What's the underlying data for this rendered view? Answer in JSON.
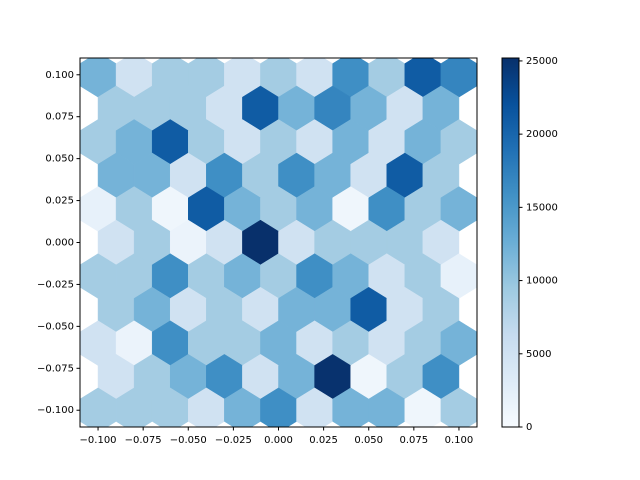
{
  "chart_data": {
    "type": "hexbin",
    "xlim": [
      -0.11,
      0.11
    ],
    "ylim": [
      -0.11,
      0.11
    ],
    "xticks": [
      {
        "value": -0.1,
        "label": "−0.100"
      },
      {
        "value": -0.075,
        "label": "−0.075"
      },
      {
        "value": -0.05,
        "label": "−0.050"
      },
      {
        "value": -0.025,
        "label": "−0.025"
      },
      {
        "value": 0,
        "label": "0.000"
      },
      {
        "value": 0.025,
        "label": "0.025"
      },
      {
        "value": 0.05,
        "label": "0.050"
      },
      {
        "value": 0.075,
        "label": "0.075"
      },
      {
        "value": 0.1,
        "label": "0.100"
      }
    ],
    "yticks": [
      {
        "value": -0.1,
        "label": "−0.100"
      },
      {
        "value": -0.075,
        "label": "−0.075"
      },
      {
        "value": -0.05,
        "label": "−0.050"
      },
      {
        "value": -0.025,
        "label": "−0.025"
      },
      {
        "value": 0,
        "label": "0.000"
      },
      {
        "value": 0.025,
        "label": "0.025"
      },
      {
        "value": 0.05,
        "label": "0.050"
      },
      {
        "value": 0.075,
        "label": "0.075"
      },
      {
        "value": 0.1,
        "label": "0.100"
      }
    ],
    "colormap": "Blues",
    "clim": [
      0,
      25200
    ],
    "cticks": [
      0,
      5000,
      10000,
      15000,
      20000,
      25000
    ],
    "x": [
      -0.1,
      -0.08,
      -0.06,
      -0.04,
      -0.02,
      0,
      0.02,
      0.04,
      0.06,
      0.08,
      0.1,
      -0.09,
      -0.07,
      -0.05,
      -0.03,
      -0.01,
      0.01,
      0.03,
      0.05,
      0.07,
      0.09,
      -0.1,
      -0.08,
      -0.06,
      -0.04,
      -0.02,
      0,
      0.02,
      0.04,
      0.06,
      0.08,
      0.1,
      -0.09,
      -0.07,
      -0.05,
      -0.03,
      -0.01,
      0.01,
      0.03,
      0.05,
      0.07,
      0.09,
      -0.1,
      -0.08,
      -0.06,
      -0.04,
      -0.02,
      0,
      0.02,
      0.04,
      0.06,
      0.08,
      0.1,
      -0.09,
      -0.07,
      -0.05,
      -0.03,
      -0.01,
      0.01,
      0.03,
      0.05,
      0.07,
      0.09,
      -0.1,
      -0.08,
      -0.06,
      -0.04,
      -0.02,
      0,
      0.02,
      0.04,
      0.06,
      0.08,
      0.1,
      -0.09,
      -0.07,
      -0.05,
      -0.03,
      -0.01,
      0.01,
      0.03,
      0.05,
      0.07,
      0.09,
      -0.1,
      -0.08,
      -0.06,
      -0.04,
      -0.02,
      0,
      0.02,
      0.04,
      0.06,
      0.08,
      0.1,
      -0.09,
      -0.07,
      -0.05,
      -0.03,
      -0.01,
      0.01,
      0.03,
      0.05,
      0.07,
      0.09,
      -0.1,
      -0.08,
      -0.06,
      -0.04,
      -0.02,
      0,
      0.02,
      0.04,
      0.06,
      0.08,
      0.1
    ],
    "y": [
      0.1,
      0.1,
      0.1,
      0.1,
      0.1,
      0.1,
      0.1,
      0.1,
      0.1,
      0.1,
      0.1,
      0.08,
      0.08,
      0.08,
      0.08,
      0.08,
      0.08,
      0.08,
      0.08,
      0.08,
      0.08,
      0.06,
      0.06,
      0.06,
      0.06,
      0.06,
      0.06,
      0.06,
      0.06,
      0.06,
      0.06,
      0.06,
      0.04,
      0.04,
      0.04,
      0.04,
      0.04,
      0.04,
      0.04,
      0.04,
      0.04,
      0.04,
      0.02,
      0.02,
      0.02,
      0.02,
      0.02,
      0.02,
      0.02,
      0.02,
      0.02,
      0.02,
      0.02,
      0,
      0,
      0,
      0,
      0,
      0,
      0,
      0,
      0,
      0,
      -0.02,
      -0.02,
      -0.02,
      -0.02,
      -0.02,
      -0.02,
      -0.02,
      -0.02,
      -0.02,
      -0.02,
      -0.02,
      -0.04,
      -0.04,
      -0.04,
      -0.04,
      -0.04,
      -0.04,
      -0.04,
      -0.04,
      -0.04,
      -0.04,
      -0.06,
      -0.06,
      -0.06,
      -0.06,
      -0.06,
      -0.06,
      -0.06,
      -0.06,
      -0.06,
      -0.06,
      -0.06,
      -0.08,
      -0.08,
      -0.08,
      -0.08,
      -0.08,
      -0.08,
      -0.08,
      -0.08,
      -0.08,
      -0.08,
      -0.1,
      -0.1,
      -0.1,
      -0.1,
      -0.1,
      -0.1,
      -0.1,
      -0.1,
      -0.1,
      -0.1,
      -0.1
    ],
    "values": [
      12000,
      5000,
      9000,
      9000,
      5000,
      9000,
      5000,
      16000,
      9000,
      21000,
      17000,
      9000,
      9000,
      9000,
      5000,
      21000,
      12000,
      17000,
      12000,
      5000,
      12000,
      9000,
      12000,
      21000,
      9000,
      5000,
      9000,
      5000,
      12000,
      5000,
      12000,
      9000,
      12000,
      12000,
      5000,
      16000,
      9000,
      16000,
      12000,
      5000,
      21000,
      9000,
      2000,
      9000,
      1000,
      21000,
      12000,
      9000,
      12000,
      1000,
      16000,
      9000,
      12000,
      5000,
      9000,
      1500,
      5000,
      25200,
      5000,
      9000,
      9000,
      9000,
      5000,
      9000,
      9000,
      16000,
      9000,
      12000,
      9000,
      16000,
      12000,
      5000,
      9000,
      2000,
      9000,
      12000,
      5000,
      9000,
      5000,
      12000,
      12000,
      21000,
      5000,
      9000,
      5000,
      1500,
      16000,
      9000,
      9000,
      12000,
      5000,
      9000,
      5000,
      9000,
      12000,
      5000,
      9000,
      12000,
      16000,
      5000,
      12000,
      25000,
      1000,
      9000,
      16000,
      9000,
      9000,
      9000,
      5000,
      12000,
      16000,
      5000,
      12000,
      12000,
      1000,
      9000
    ]
  }
}
